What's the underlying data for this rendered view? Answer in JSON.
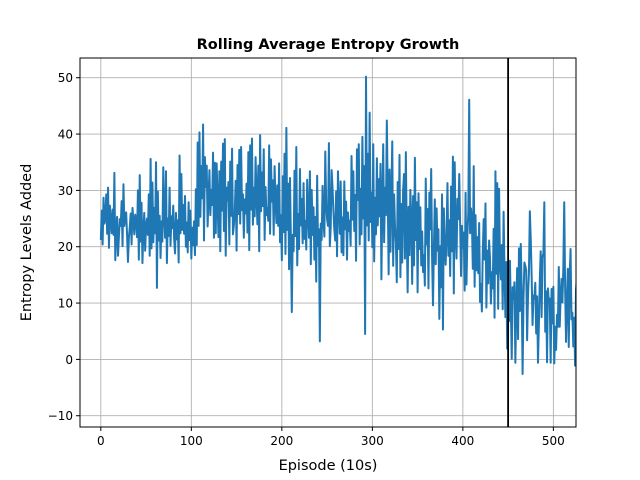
{
  "chart_data": {
    "type": "line",
    "title": "Rolling Average Entropy Growth",
    "xlabel": "Episode (10s)",
    "ylabel": "Entropy Levels Added",
    "xlim": [
      -23,
      525
    ],
    "ylim": [
      -12,
      53.5
    ],
    "xticks": [
      0,
      100,
      200,
      300,
      400,
      500
    ],
    "yticks": [
      -10,
      0,
      10,
      20,
      30,
      40,
      50
    ],
    "grid": true,
    "line_color": "#1f77b4",
    "vline": {
      "x": 450,
      "color": "#000000"
    },
    "series": [
      {
        "x_start": 0,
        "x_step": 1,
        "y": [
          21.2,
          26.4,
          20.4,
          28.7,
          24.1,
          24.9,
          29.3,
          22.3,
          30.5,
          19.8,
          27.3,
          24.8,
          22.4,
          26.6,
          22.1,
          33.1,
          17.6,
          22.8,
          25.3,
          18.4,
          21.8,
          24.9,
          23.7,
          28.1,
          20.1,
          31.1,
          23.7,
          25.6,
          26.1,
          22.1,
          17.3,
          21.6,
          23.5,
          25.9,
          20.4,
          26.9,
          24.6,
          22.2,
          25.7,
          24.8,
          21.7,
          30.0,
          17.7,
          32.7,
          20.9,
          27.8,
          17.1,
          22.7,
          26.0,
          19.3,
          23.8,
          25.0,
          22.1,
          29.3,
          18.4,
          35.6,
          19.7,
          31.4,
          20.8,
          26.9,
          22.4,
          35.0,
          12.7,
          29.8,
          21.1,
          25.5,
          18.0,
          24.5,
          20.9,
          34.1,
          25.5,
          21.6,
          33.4,
          17.1,
          25.0,
          21.9,
          30.5,
          20.2,
          25.4,
          23.3,
          27.3,
          21.4,
          18.8,
          26.0,
          21.3,
          24.7,
          17.2,
          36.2,
          22.4,
          32.9,
          23.0,
          27.4,
          22.3,
          29.0,
          20.0,
          24.3,
          19.0,
          27.9,
          21.2,
          26.4,
          17.9,
          23.4,
          20.3,
          24.5,
          18.5,
          30.2,
          20.3,
          38.5,
          23.7,
          40.3,
          25.3,
          34.3,
          28.6,
          41.7,
          21.1,
          35.9,
          30.6,
          34.4,
          23.6,
          28.8,
          33.6,
          25.6,
          30.1,
          27.4,
          36.7,
          21.6,
          34.9,
          22.4,
          34.8,
          27.8,
          21.7,
          33.4,
          19.2,
          35.1,
          26.4,
          38.3,
          22.8,
          39.1,
          18.4,
          30.5,
          28.2,
          31.5,
          20.4,
          35.1,
          25.5,
          37.4,
          22.2,
          23.8,
          26.3,
          31.7,
          19.3,
          34.5,
          25.8,
          37.2,
          24.1,
          37.7,
          26.5,
          29.3,
          21.6,
          28.4,
          25.9,
          31.2,
          22.5,
          36.8,
          19.4,
          38.0,
          26.6,
          39.2,
          23.9,
          30.5,
          25.4,
          35.9,
          29.1,
          24.0,
          34.4,
          19.2,
          39.8,
          26.3,
          33.2,
          27.2,
          37.3,
          21.2,
          30.6,
          25.6,
          26.9,
          24.6,
          38.0,
          22.3,
          35.5,
          28.0,
          31.8,
          22.1,
          34.3,
          28.1,
          24.2,
          30.9,
          23.7,
          34.8,
          20.8,
          25.6,
          17.6,
          32.5,
          22.6,
          36.5,
          18.7,
          41.1,
          23.0,
          31.2,
          16.0,
          32.2,
          21.2,
          8.4,
          22.1,
          19.2,
          33.5,
          21.9,
          37.7,
          16.7,
          25.8,
          19.6,
          33.8,
          23.8,
          28.5,
          20.6,
          31.3,
          21.4,
          24.6,
          19.5,
          31.9,
          25.6,
          21.6,
          33.4,
          16.9,
          30.1,
          22.1,
          27.0,
          17.7,
          25.3,
          13.8,
          32.6,
          20.1,
          23.1,
          3.2,
          24.1,
          21.2,
          30.8,
          24.6,
          21.8,
          36.9,
          27.4,
          24.9,
          23.7,
          38.4,
          20.1,
          23.5,
          33.6,
          30.5,
          26.3,
          23.0,
          21.1,
          29.8,
          18.3,
          33.4,
          27.3,
          22.3,
          31.6,
          19.0,
          25.2,
          18.5,
          31.6,
          23.1,
          28.0,
          17.7,
          26.1,
          22.8,
          24.6,
          20.2,
          36.1,
          24.8,
          33.4,
          22.8,
          29.2,
          17.5,
          37.3,
          28.3,
          38.2,
          20.4,
          30.3,
          22.2,
          39.5,
          25.0,
          34.3,
          4.5,
          50.2,
          23.8,
          36.5,
          21.1,
          43.8,
          24.4,
          29.6,
          19.9,
          38.2,
          17.4,
          28.7,
          22.2,
          35.7,
          23.8,
          32.0,
          25.4,
          34.7,
          14.2,
          27.6,
          38.2,
          20.8,
          30.5,
          25.6,
          42.4,
          29.8,
          15.1,
          33.7,
          19.1,
          29.0,
          38.7,
          16.6,
          29.3,
          23.7,
          20.7,
          13.7,
          31.5,
          19.6,
          36.3,
          14.6,
          27.6,
          17.2,
          30.1,
          32.9,
          17.9,
          36.8,
          22.3,
          11.9,
          27.1,
          18.5,
          30.1,
          25.0,
          13.4,
          29.0,
          16.7,
          35.8,
          21.2,
          27.9,
          11.9,
          29.5,
          19.6,
          27.0,
          16.7,
          22.7,
          15.5,
          18.5,
          13.1,
          32.1,
          20.4,
          26.7,
          12.6,
          29.6,
          23.1,
          33.8,
          18.1,
          9.6,
          19.7,
          28.4,
          16.9,
          26.8,
          19.3,
          23.1,
          7.2,
          20.1,
          12.8,
          29.3,
          5.3,
          26.8,
          20.1,
          16.8,
          22.3,
          31.3,
          18.4,
          24.7,
          14.8,
          30.7,
          19.2,
          36.0,
          11.7,
          35.0,
          22.3,
          17.9,
          28.5,
          24.9,
          32.9,
          23.9,
          14.8,
          23.7,
          19.8,
          22.5,
          12.2,
          29.6,
          13.3,
          21.9,
          26.0,
          46.1,
          22.4,
          26.8,
          24.6,
          16.1,
          34.3,
          12.9,
          25.6,
          15.8,
          21.7,
          15.3,
          24.2,
          10.2,
          13.4,
          8.5,
          19.2,
          24.9,
          17.7,
          27.7,
          9.2,
          19.3,
          13.5,
          21.1,
          17.8,
          9.9,
          15.5,
          12.6,
          23.2,
          7.4,
          33.4,
          15.2,
          31.3,
          9.0,
          30.3,
          17.4,
          14.2,
          20.3,
          8.9,
          26.2,
          15.6,
          7.5,
          17.3,
          1.9,
          14.2,
          6.8,
          17.5,
          9.2,
          0.1,
          12.8,
          10.7,
          13.7,
          -0.6,
          9.4,
          16.2,
          3.6,
          19.7,
          8.6,
          20.5,
          12.1,
          -2.6,
          10.8,
          17.2,
          16.6,
          15.8,
          3.4,
          11.5,
          15.3,
          26.3,
          21.4,
          14.9,
          6.1,
          11.3,
          10.8,
          13.6,
          4.6,
          11.2,
          -0.6,
          6.3,
          14.1,
          19.2,
          7.5,
          18.1,
          18.9,
          27.9,
          4.9,
          12.1,
          -0.5,
          12.6,
          10.1,
          10.8,
          -0.6,
          12.5,
          6.4,
          12.9,
          -0.7,
          5.8,
          1.7,
          7.9,
          5.8,
          16.4,
          5.8,
          10.8,
          14.3,
          10.1,
          16.3,
          27.9,
          12.6,
          3.1,
          10.5,
          16.1,
          2.2,
          14.9,
          19.6,
          7.1,
          8.3,
          2.3,
          7.4,
          -1.1,
          12.3,
          14.6,
          7.8,
          10.4,
          12.2,
          19.7,
          11.2,
          6.2,
          3.2,
          11.6,
          15.8,
          1.6,
          13.2,
          10.8,
          11.3,
          6.0,
          11.3,
          14.4,
          2.7,
          13.0
        ]
      }
    ]
  }
}
